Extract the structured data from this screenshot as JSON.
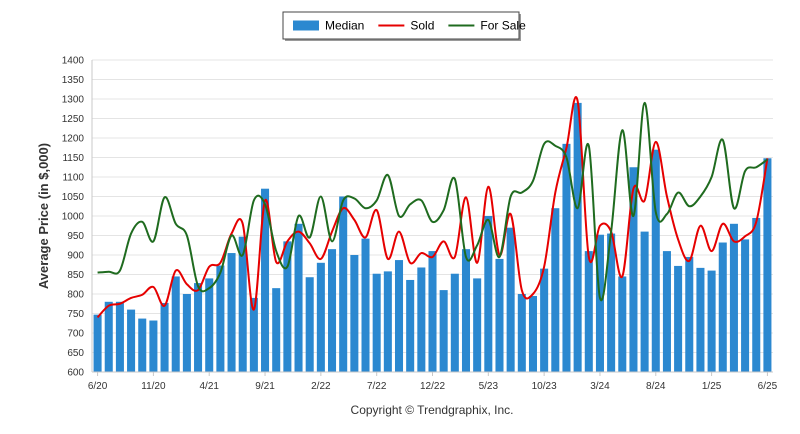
{
  "chart_data": {
    "type": "bar",
    "title": "",
    "xlabel": "",
    "ylabel": "Average Price (in $,000)",
    "ylim": [
      600,
      1400
    ],
    "yticks": [
      600,
      650,
      700,
      750,
      800,
      850,
      900,
      950,
      1000,
      1050,
      1100,
      1150,
      1200,
      1250,
      1300,
      1350,
      1400
    ],
    "grid": true,
    "legend_position": "top-center",
    "x_tick_labels": [
      {
        "index": 0,
        "label": "6/20"
      },
      {
        "index": 5,
        "label": "11/20"
      },
      {
        "index": 10,
        "label": "4/21"
      },
      {
        "index": 15,
        "label": "9/21"
      },
      {
        "index": 20,
        "label": "2/22"
      },
      {
        "index": 25,
        "label": "7/22"
      },
      {
        "index": 30,
        "label": "12/22"
      },
      {
        "index": 35,
        "label": "5/23"
      },
      {
        "index": 40,
        "label": "10/23"
      },
      {
        "index": 45,
        "label": "3/24"
      },
      {
        "index": 50,
        "label": "8/24"
      },
      {
        "index": 55,
        "label": "1/25"
      },
      {
        "index": 60,
        "label": "6/25"
      }
    ],
    "series": [
      {
        "name": "Median",
        "type": "bar",
        "color": "#2b88d0",
        "values": [
          747,
          780,
          780,
          760,
          737,
          732,
          777,
          845,
          800,
          828,
          840,
          873,
          905,
          947,
          790,
          1070,
          815,
          935,
          980,
          843,
          880,
          915,
          1050,
          900,
          942,
          852,
          858,
          887,
          836,
          868,
          910,
          810,
          852,
          915,
          840,
          1000,
          890,
          970,
          800,
          795,
          865,
          1020,
          1185,
          1290,
          910,
          952,
          955,
          845,
          1125,
          960,
          1170,
          910,
          872,
          895,
          867,
          860,
          932,
          980,
          940,
          995,
          1148
        ]
      },
      {
        "name": "Sold",
        "type": "line",
        "color": "#e60000",
        "values": [
          740,
          770,
          775,
          790,
          798,
          818,
          770,
          860,
          825,
          810,
          870,
          880,
          955,
          980,
          760,
          1040,
          882,
          935,
          960,
          930,
          890,
          960,
          1020,
          990,
          945,
          1015,
          890,
          960,
          880,
          905,
          895,
          935,
          895,
          1048,
          880,
          1075,
          900,
          1005,
          810,
          800,
          870,
          1060,
          1175,
          1295,
          895,
          975,
          960,
          845,
          1070,
          1040,
          1190,
          1050,
          940,
          885,
          975,
          910,
          980,
          935,
          948,
          985,
          1148
        ]
      },
      {
        "name": "For Sale",
        "type": "line",
        "color": "#1f6b1f",
        "values": [
          855,
          857,
          860,
          955,
          985,
          935,
          1048,
          980,
          950,
          820,
          815,
          855,
          950,
          900,
          1040,
          1030,
          910,
          870,
          1000,
          945,
          1050,
          935,
          1040,
          1045,
          1020,
          1040,
          1105,
          1000,
          1030,
          1040,
          985,
          1015,
          1095,
          895,
          925,
          990,
          895,
          1050,
          1060,
          1090,
          1185,
          1180,
          1150,
          1020,
          1180,
          790,
          960,
          1220,
          1000,
          1290,
          1010,
          1005,
          1060,
          1025,
          1050,
          1100,
          1195,
          1020,
          1115,
          1125,
          1145
        ]
      }
    ],
    "annotations": [
      "Copyright © Trendgraphix, Inc."
    ]
  }
}
